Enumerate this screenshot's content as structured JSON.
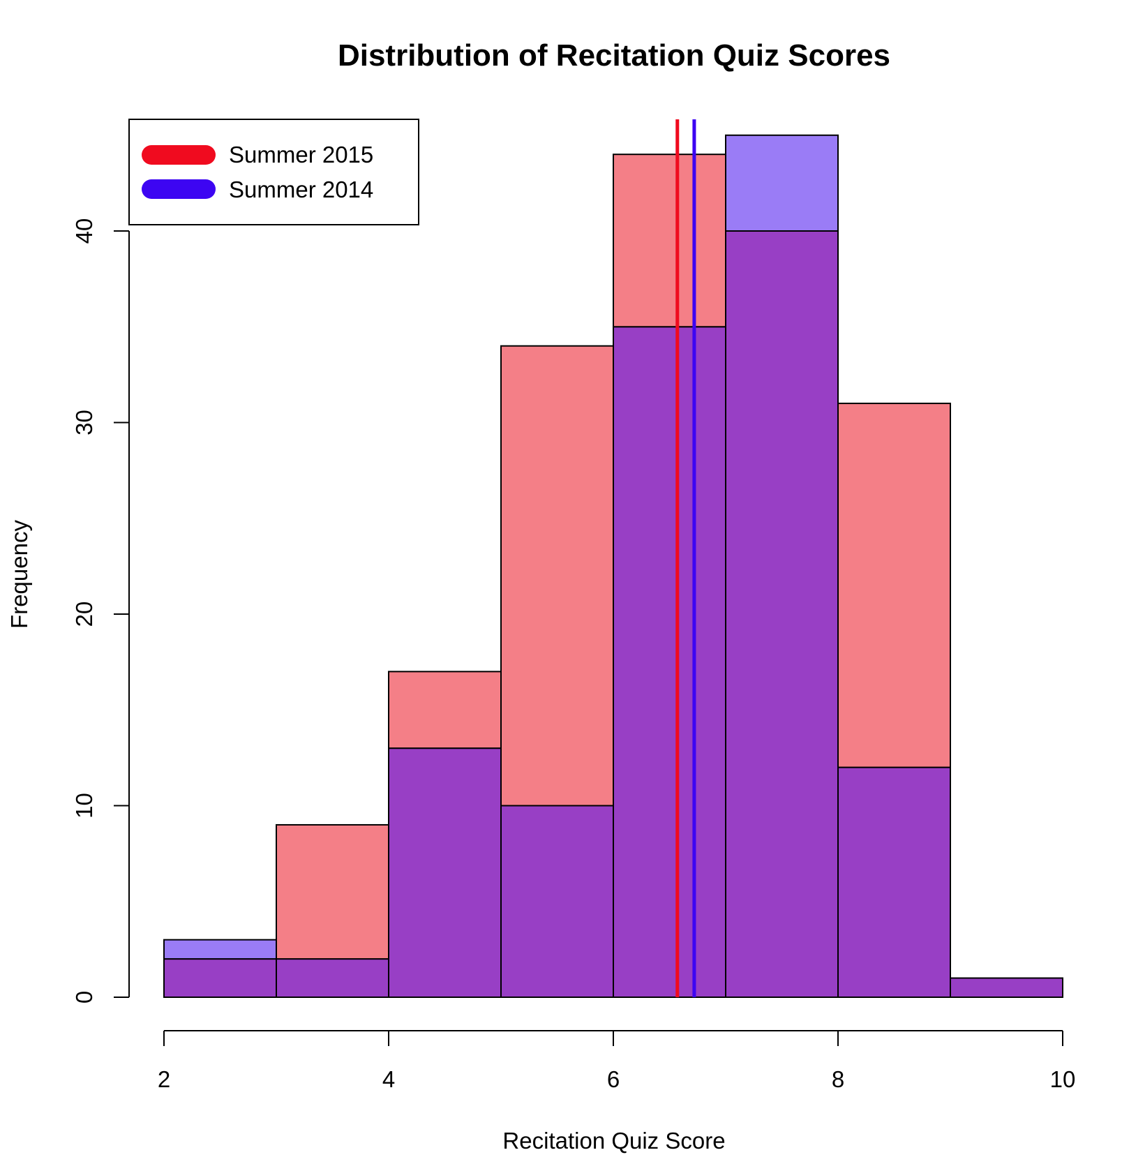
{
  "colors": {
    "summer_2015_fill": "#f47f87",
    "summer_2014_fill": "#9a7cf6",
    "overlap_fill": "#983fc5",
    "summer_2015_mean_line": "#f00b1f",
    "summer_2014_mean_line": "#3d05f2",
    "bar_border": "#000000"
  },
  "chart_data": {
    "type": "bar",
    "subtype": "overlaid-histogram",
    "title": "Distribution of Recitation Quiz Scores",
    "xlabel": "Recitation Quiz Score",
    "ylabel": "Frequency",
    "bins": [
      [
        2,
        3
      ],
      [
        3,
        4
      ],
      [
        4,
        5
      ],
      [
        5,
        6
      ],
      [
        6,
        7
      ],
      [
        7,
        8
      ],
      [
        8,
        9
      ],
      [
        9,
        10
      ]
    ],
    "series": [
      {
        "name": "Summer 2015",
        "values": [
          2,
          9,
          17,
          34,
          44,
          40,
          31,
          1
        ],
        "mean": 6.57,
        "color": "#f00b1f"
      },
      {
        "name": "Summer 2014",
        "values": [
          3,
          2,
          13,
          10,
          35,
          45,
          12,
          1
        ],
        "mean": 6.72,
        "color": "#3d05f2"
      }
    ],
    "xlim": [
      2,
      10
    ],
    "ylim": [
      0,
      45
    ],
    "xticks": [
      2,
      4,
      6,
      8,
      10
    ],
    "yticks": [
      0,
      10,
      20,
      30,
      40
    ],
    "legend_position": "top-left",
    "grid": false
  }
}
